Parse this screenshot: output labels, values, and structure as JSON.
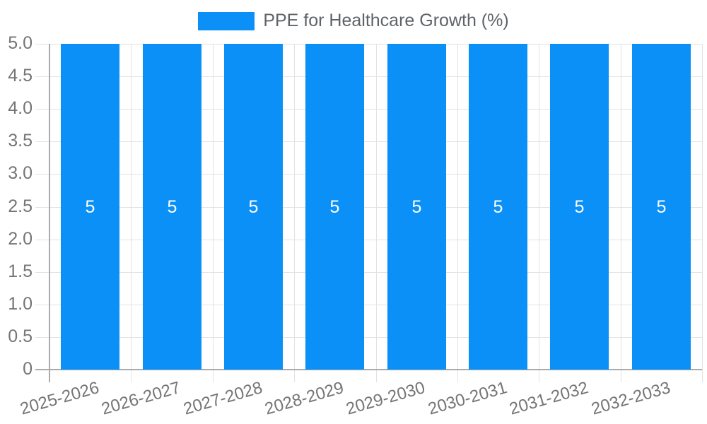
{
  "legend": {
    "label": "PPE for Healthcare Growth (%)"
  },
  "chart_data": {
    "type": "bar",
    "title": "",
    "xlabel": "",
    "ylabel": "",
    "categories": [
      "2025-2026",
      "2026-2027",
      "2027-2028",
      "2028-2029",
      "2029-2030",
      "2030-2031",
      "2031-2032",
      "2032-2033"
    ],
    "series": [
      {
        "name": "PPE for Healthcare Growth (%)",
        "values": [
          5,
          5,
          5,
          5,
          5,
          5,
          5,
          5
        ]
      }
    ],
    "bar_value_labels": [
      "5",
      "5",
      "5",
      "5",
      "5",
      "5",
      "5",
      "5"
    ],
    "ylim": [
      0,
      5
    ],
    "ytick_labels": [
      "5.0",
      "4.5",
      "4.0",
      "3.5",
      "3.0",
      "2.5",
      "2.0",
      "1.5",
      "1.0",
      "0.5",
      "0"
    ],
    "grid": true,
    "legend_position": "top",
    "colors": {
      "bar": "#0b90f8",
      "grid_line": "#e2e2e2",
      "axis_line": "#aaaaaa",
      "tick_text": "#757575",
      "legend_text": "#5f6368",
      "bar_label_text": "#ffffff",
      "background": "#ffffff"
    }
  }
}
